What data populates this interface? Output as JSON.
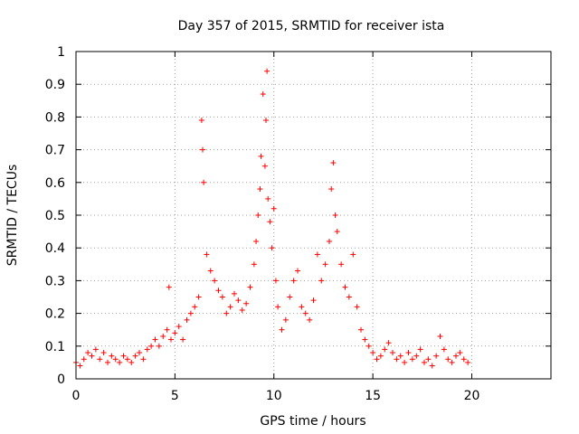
{
  "chart_data": {
    "type": "scatter",
    "title": "Day 357 of 2015, SRMTID for receiver ista",
    "xlabel": "GPS time / hours",
    "ylabel": "SRMTID / TECUs",
    "xlim": [
      0,
      24
    ],
    "ylim": [
      0,
      1
    ],
    "xticks": [
      0,
      5,
      10,
      15,
      20
    ],
    "yticks": [
      0,
      0.1,
      0.2,
      0.3,
      0.4,
      0.5,
      0.6,
      0.7,
      0.8,
      0.9,
      1
    ],
    "xtick_labels": [
      "0",
      "5",
      "10",
      "15",
      "20"
    ],
    "ytick_labels": [
      "0",
      "0.1",
      "0.2",
      "0.3",
      "0.4",
      "0.5",
      "0.6",
      "0.7",
      "0.8",
      "0.9",
      "1"
    ],
    "grid": true,
    "marker": "+",
    "marker_color": "#ff0000",
    "series": [
      {
        "name": "SRMTID",
        "x": [
          0.0,
          0.2,
          0.4,
          0.6,
          0.8,
          1.0,
          1.2,
          1.4,
          1.6,
          1.8,
          2.0,
          2.2,
          2.4,
          2.6,
          2.8,
          3.0,
          3.2,
          3.4,
          3.6,
          3.8,
          4.0,
          4.2,
          4.4,
          4.6,
          4.7,
          4.8,
          5.0,
          5.2,
          5.4,
          5.6,
          5.8,
          6.0,
          6.2,
          6.35,
          6.4,
          6.45,
          6.6,
          6.8,
          7.0,
          7.2,
          7.4,
          7.6,
          7.8,
          8.0,
          8.2,
          8.4,
          8.6,
          8.8,
          9.0,
          9.1,
          9.2,
          9.3,
          9.35,
          9.45,
          9.55,
          9.6,
          9.65,
          9.7,
          9.8,
          9.9,
          10.0,
          10.1,
          10.2,
          10.4,
          10.6,
          10.8,
          11.0,
          11.2,
          11.4,
          11.6,
          11.8,
          12.0,
          12.2,
          12.4,
          12.6,
          12.8,
          12.9,
          13.0,
          13.1,
          13.2,
          13.4,
          13.6,
          13.8,
          14.0,
          14.2,
          14.4,
          14.6,
          14.8,
          15.0,
          15.2,
          15.4,
          15.6,
          15.8,
          16.0,
          16.2,
          16.4,
          16.6,
          16.8,
          17.0,
          17.2,
          17.4,
          17.6,
          17.8,
          18.0,
          18.2,
          18.4,
          18.6,
          18.8,
          19.0,
          19.2,
          19.4,
          19.6,
          19.8
        ],
        "y": [
          0.05,
          0.04,
          0.06,
          0.08,
          0.07,
          0.09,
          0.06,
          0.08,
          0.05,
          0.07,
          0.06,
          0.05,
          0.07,
          0.06,
          0.05,
          0.07,
          0.08,
          0.06,
          0.09,
          0.1,
          0.12,
          0.1,
          0.13,
          0.15,
          0.28,
          0.12,
          0.14,
          0.16,
          0.12,
          0.18,
          0.2,
          0.22,
          0.25,
          0.79,
          0.7,
          0.6,
          0.38,
          0.33,
          0.3,
          0.27,
          0.25,
          0.2,
          0.22,
          0.26,
          0.24,
          0.21,
          0.23,
          0.28,
          0.35,
          0.42,
          0.5,
          0.58,
          0.68,
          0.87,
          0.65,
          0.79,
          0.94,
          0.55,
          0.48,
          0.4,
          0.52,
          0.3,
          0.22,
          0.15,
          0.18,
          0.25,
          0.3,
          0.33,
          0.22,
          0.2,
          0.18,
          0.24,
          0.38,
          0.3,
          0.35,
          0.42,
          0.58,
          0.66,
          0.5,
          0.45,
          0.35,
          0.28,
          0.25,
          0.38,
          0.22,
          0.15,
          0.12,
          0.1,
          0.08,
          0.06,
          0.07,
          0.09,
          0.11,
          0.08,
          0.06,
          0.07,
          0.05,
          0.08,
          0.06,
          0.07,
          0.09,
          0.05,
          0.06,
          0.04,
          0.07,
          0.13,
          0.09,
          0.06,
          0.05,
          0.07,
          0.08,
          0.06,
          0.05
        ]
      }
    ]
  }
}
